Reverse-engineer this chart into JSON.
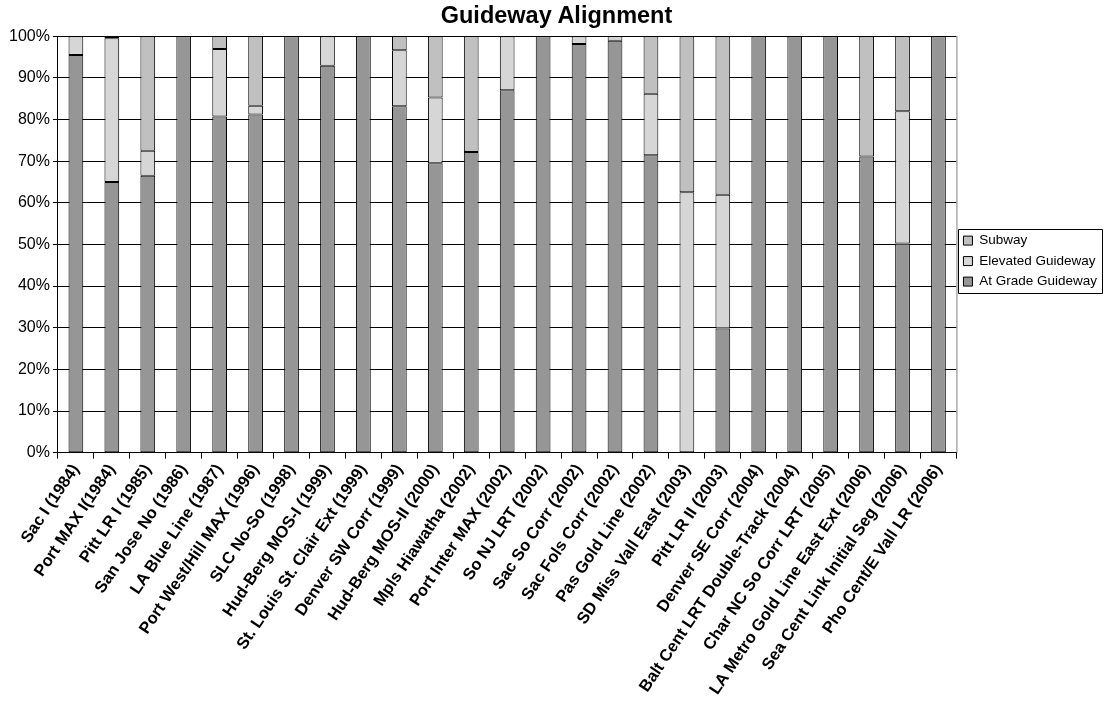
{
  "chart_data": {
    "type": "bar",
    "title": "Guideway Alignment",
    "categories": [
      "Sac I (1984)",
      "Port MAX I(1984)",
      "Pitt LR I (1985)",
      "San Jose No (1986)",
      "LA Blue Line (1987)",
      "Port West/Hill MAX (1996)",
      "SLC No-So (1998)",
      "Hud-Berg MOS-I (1999)",
      "St. Louis St. Clair Ext (1999)",
      "Denver SW Corr (1999)",
      "Hud-Berg MOS-II (2000)",
      "Mpls Hiawatha (2002)",
      "Port Inter MAX (2002)",
      "So NJ LRT (2002)",
      "Sac So Corr (2002)",
      "Sac Fols Corr (2002)",
      "Pas Gold Line (2002)",
      "SD Miss Vall East (2003)",
      "Pitt LR II (2003)",
      "Denver SE Corr (2004)",
      "Balt Cent LRT Double-Track (2004)",
      "Char NC So Corr LRT (2005)",
      "LA Metro Gold Line East Ext (2006)",
      "Sea Cent Link Initial Seg (2006)",
      "Pho Cent/E Vall LR (2006)"
    ],
    "series": [
      {
        "name": "At Grade Guideway",
        "color": "#969696",
        "values": [
          95.5,
          65,
          66.5,
          100,
          80.7,
          81.2,
          100,
          92.9,
          100,
          83.2,
          69.5,
          72.2,
          87,
          100,
          98.1,
          98.9,
          71.4,
          0,
          29.8,
          100,
          100,
          100,
          71.1,
          50.2,
          100
        ]
      },
      {
        "name": "Elevated Guideway",
        "color": "#d6d6d6",
        "values": [
          4.5,
          34.5,
          6,
          0,
          16.2,
          2.1,
          0,
          7.1,
          0,
          13.4,
          15.8,
          0,
          13,
          0,
          1.9,
          1.1,
          14.8,
          62.5,
          32.1,
          0,
          0,
          0,
          0,
          31.8,
          0
        ]
      },
      {
        "name": "Subway",
        "color": "#c0c0c0",
        "values": [
          0,
          0.5,
          27.5,
          0,
          3.1,
          16.7,
          0,
          0,
          0,
          3.4,
          14.7,
          27.8,
          0,
          0,
          0,
          0,
          13.8,
          37.5,
          38.1,
          0,
          0,
          0,
          28.9,
          18,
          0
        ]
      }
    ],
    "stacked": true,
    "ylim": [
      0,
      100
    ],
    "yticks": [
      {
        "value": 0,
        "label": "0%"
      },
      {
        "value": 10,
        "label": "10%"
      },
      {
        "value": 20,
        "label": "20%"
      },
      {
        "value": 30,
        "label": "30%"
      },
      {
        "value": 40,
        "label": "40%"
      },
      {
        "value": 50,
        "label": "50%"
      },
      {
        "value": 60,
        "label": "60%"
      },
      {
        "value": 70,
        "label": "70%"
      },
      {
        "value": 80,
        "label": "80%"
      },
      {
        "value": 90,
        "label": "90%"
      },
      {
        "value": 100,
        "label": "100%"
      }
    ],
    "grid": "y",
    "legend": "right"
  }
}
